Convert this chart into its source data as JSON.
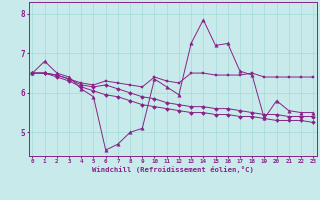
{
  "xlabel": "Windchill (Refroidissement éolien,°C)",
  "background_color": "#c8eaea",
  "line_color": "#882288",
  "grid_color": "#aadddd",
  "x_ticks": [
    0,
    1,
    2,
    3,
    4,
    5,
    6,
    7,
    8,
    9,
    10,
    11,
    12,
    13,
    14,
    15,
    16,
    17,
    18,
    19,
    20,
    21,
    22,
    23
  ],
  "y_ticks": [
    5,
    6,
    7,
    8
  ],
  "xlim": [
    -0.3,
    23.3
  ],
  "ylim": [
    4.4,
    8.3
  ],
  "series": [
    [
      6.5,
      6.8,
      6.5,
      6.4,
      6.1,
      5.9,
      4.55,
      4.7,
      5.0,
      5.1,
      6.35,
      6.15,
      5.95,
      7.25,
      7.85,
      7.2,
      7.25,
      6.55,
      6.45,
      5.35,
      5.8,
      5.55,
      5.5,
      5.5
    ],
    [
      6.5,
      6.5,
      6.4,
      6.3,
      6.15,
      6.05,
      5.95,
      5.9,
      5.8,
      5.7,
      5.65,
      5.6,
      5.55,
      5.5,
      5.5,
      5.45,
      5.45,
      5.4,
      5.4,
      5.35,
      5.3,
      5.3,
      5.3,
      5.25
    ],
    [
      6.5,
      6.5,
      6.45,
      6.35,
      6.2,
      6.15,
      6.2,
      6.1,
      6.0,
      5.9,
      5.85,
      5.75,
      5.7,
      5.65,
      5.65,
      5.6,
      5.6,
      5.55,
      5.5,
      5.45,
      5.45,
      5.4,
      5.4,
      5.4
    ],
    [
      6.5,
      6.5,
      6.45,
      6.35,
      6.25,
      6.2,
      6.3,
      6.25,
      6.2,
      6.15,
      6.4,
      6.3,
      6.25,
      6.5,
      6.5,
      6.45,
      6.45,
      6.45,
      6.5,
      6.4,
      6.4,
      6.4,
      6.4,
      6.4
    ]
  ],
  "markers": [
    "^",
    "D",
    "D",
    "s"
  ]
}
